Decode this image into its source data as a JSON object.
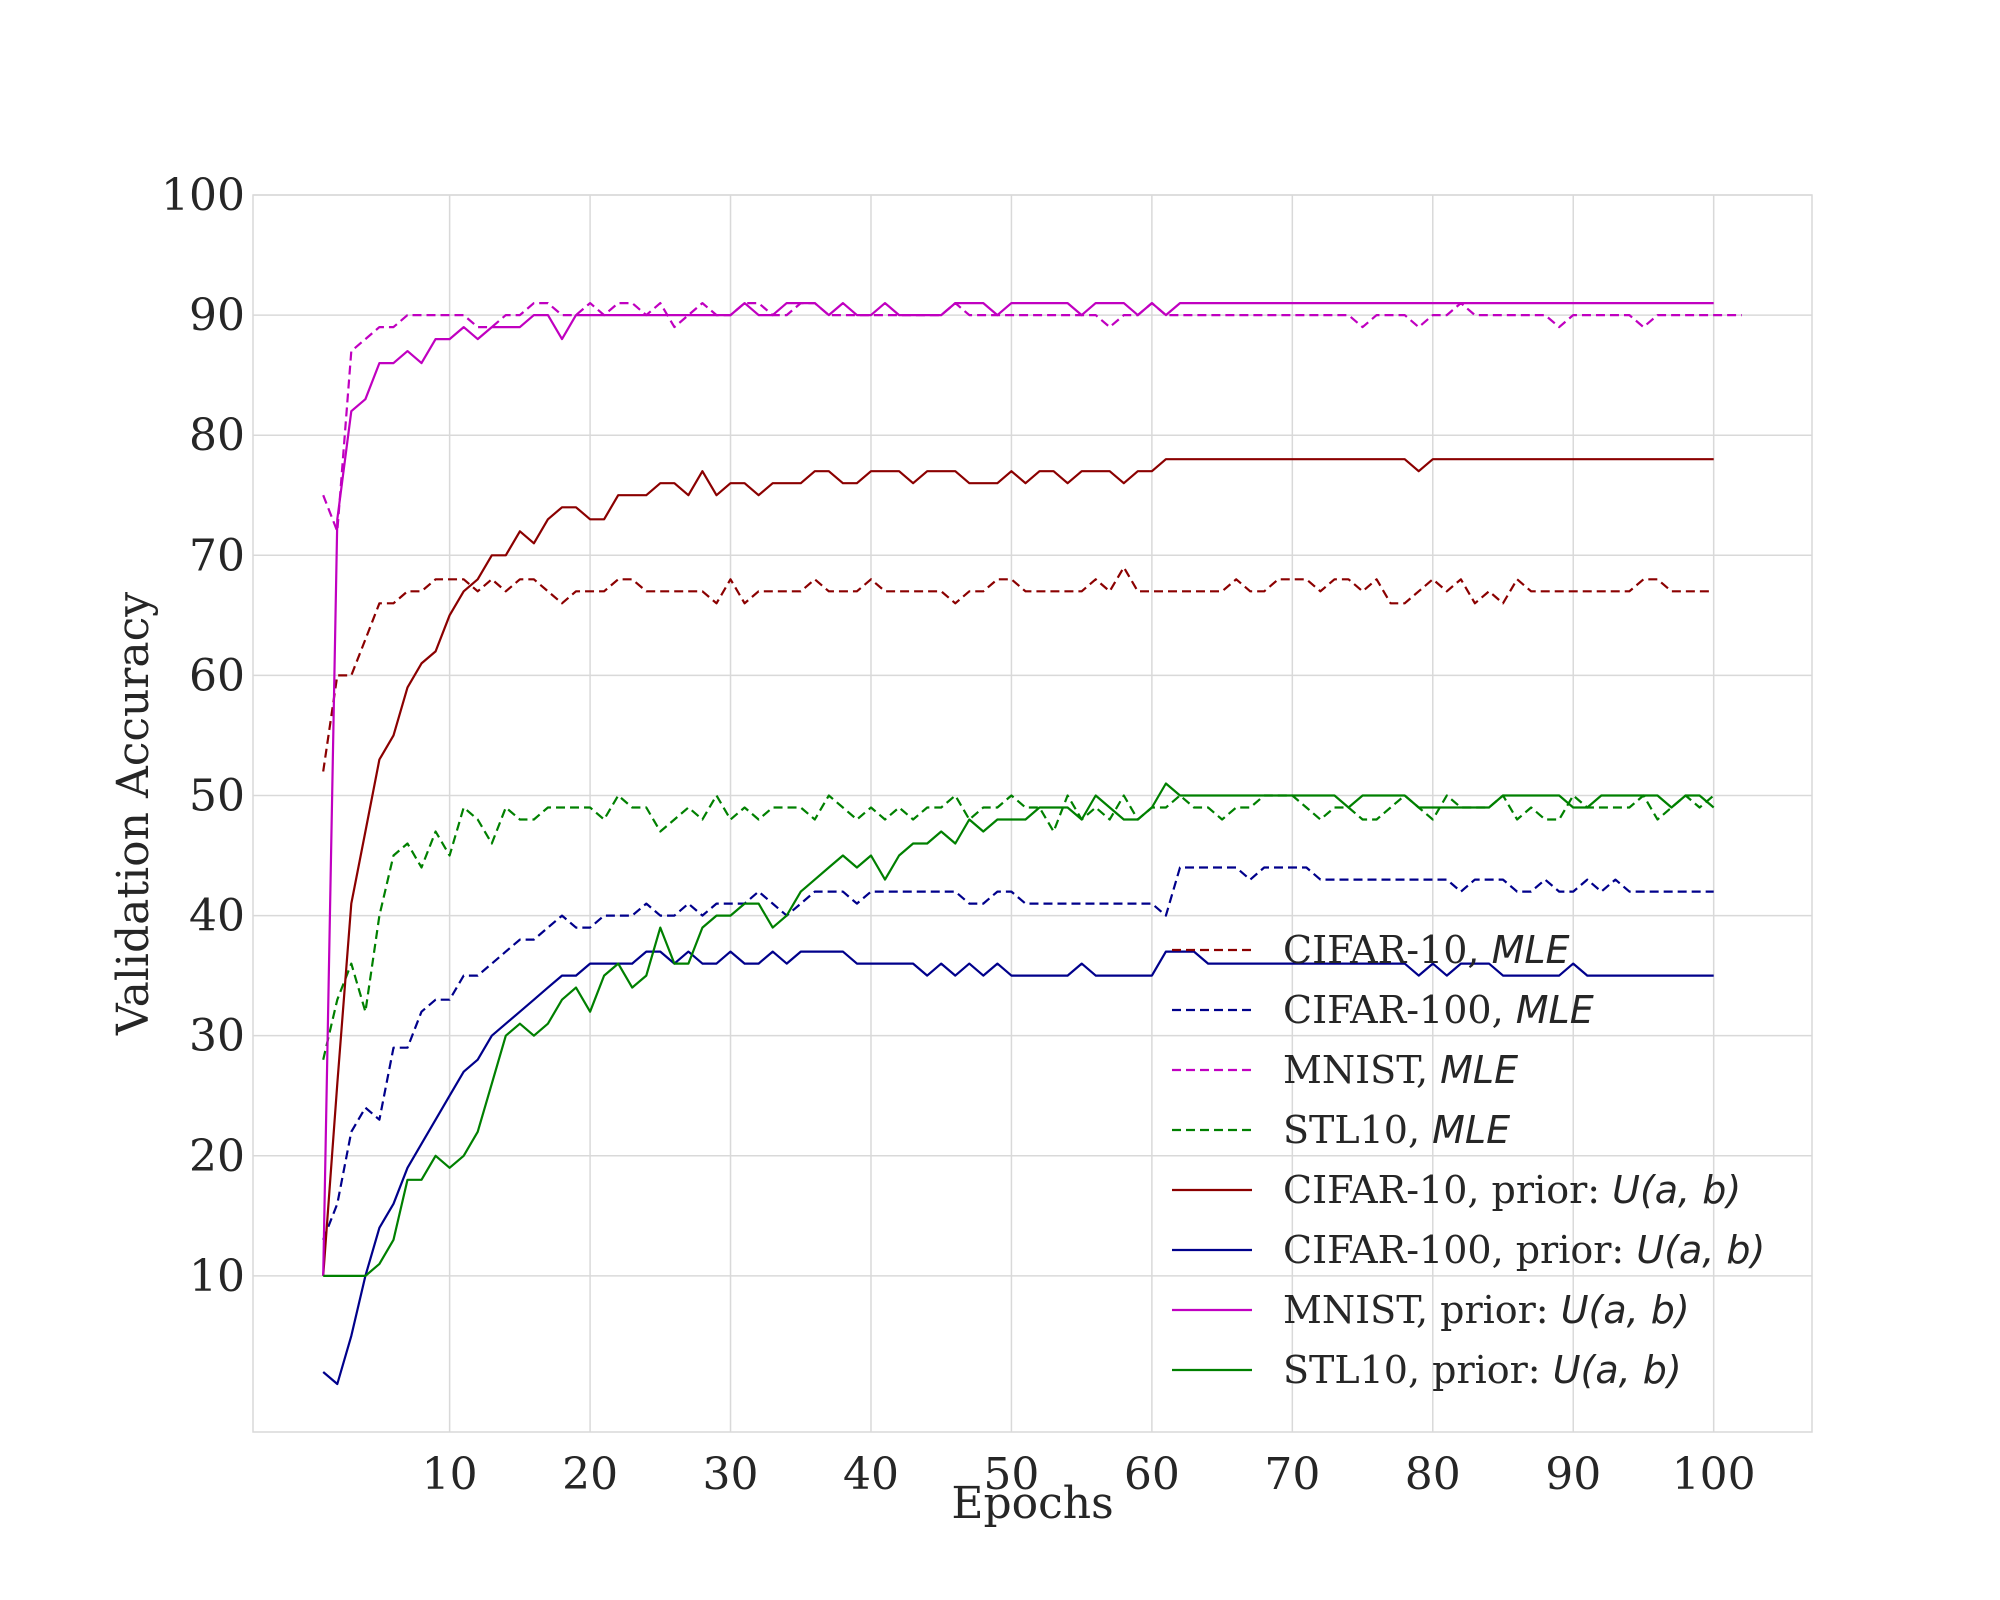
{
  "chart_data": {
    "type": "line",
    "xlabel": "Epochs",
    "ylabel": "Validation Accuracy",
    "xlim": [
      -4,
      107
    ],
    "ylim": [
      -3,
      100
    ],
    "xticks": [
      10,
      20,
      30,
      40,
      50,
      60,
      70,
      80,
      90,
      100
    ],
    "yticks": [
      10,
      20,
      30,
      40,
      50,
      60,
      70,
      80,
      90,
      100
    ],
    "grid": true,
    "legend_position": "lower-right",
    "series": [
      {
        "name": "CIFAR-10, MLE",
        "label_parts": [
          "CIFAR-10, ",
          "MLE"
        ],
        "style": "dashed",
        "color": "#8b0000",
        "x_start": 1,
        "values": [
          52,
          60,
          60,
          63,
          66,
          66,
          67,
          67,
          68,
          68,
          68,
          67,
          68,
          67,
          68,
          68,
          67,
          66,
          67,
          67,
          67,
          68,
          68,
          67,
          67,
          67,
          67,
          67,
          66,
          68,
          66,
          67,
          67,
          67,
          67,
          68,
          67,
          67,
          67,
          68,
          67,
          67,
          67,
          67,
          67,
          66,
          67,
          67,
          68,
          68,
          67,
          67,
          67,
          67,
          67,
          68,
          67,
          69,
          67,
          67,
          67,
          67,
          67,
          67,
          67,
          68,
          67,
          67,
          68,
          68,
          68,
          67,
          68,
          68,
          67,
          68,
          66,
          66,
          67,
          68,
          67,
          68,
          66,
          67,
          66,
          68,
          67,
          67,
          67,
          67,
          67,
          67,
          67,
          67,
          68,
          68,
          67,
          67,
          67,
          67
        ]
      },
      {
        "name": "CIFAR-100, MLE",
        "label_parts": [
          "CIFAR-100, ",
          "MLE"
        ],
        "style": "dashed",
        "color": "#00008b",
        "x_start": 1,
        "values": [
          13,
          16,
          22,
          24,
          23,
          29,
          29,
          32,
          33,
          33,
          35,
          35,
          36,
          37,
          38,
          38,
          39,
          40,
          39,
          39,
          40,
          40,
          40,
          41,
          40,
          40,
          41,
          40,
          41,
          41,
          41,
          42,
          41,
          40,
          41,
          42,
          42,
          42,
          41,
          42,
          42,
          42,
          42,
          42,
          42,
          42,
          41,
          41,
          42,
          42,
          41,
          41,
          41,
          41,
          41,
          41,
          41,
          41,
          41,
          41,
          40,
          44,
          44,
          44,
          44,
          44,
          43,
          44,
          44,
          44,
          44,
          43,
          43,
          43,
          43,
          43,
          43,
          43,
          43,
          43,
          43,
          42,
          43,
          43,
          43,
          42,
          42,
          43,
          42,
          42,
          43,
          42,
          43,
          42,
          42,
          42,
          42,
          42,
          42,
          42
        ]
      },
      {
        "name": "MNIST, MLE",
        "label_parts": [
          "MNIST, ",
          "MLE"
        ],
        "style": "dashed",
        "color": "#c000c0",
        "x_start": 1,
        "values": [
          75,
          72,
          87,
          88,
          89,
          89,
          90,
          90,
          90,
          90,
          90,
          89,
          89,
          90,
          90,
          91,
          91,
          90,
          90,
          91,
          90,
          91,
          91,
          90,
          91,
          89,
          90,
          91,
          90,
          90,
          91,
          91,
          90,
          90,
          91,
          91,
          90,
          90,
          90,
          90,
          90,
          90,
          90,
          90,
          90,
          91,
          90,
          90,
          90,
          90,
          90,
          90,
          90,
          90,
          90,
          90,
          89,
          90,
          90,
          91,
          90,
          90,
          90,
          90,
          90,
          90,
          90,
          90,
          90,
          90,
          90,
          90,
          90,
          90,
          89,
          90,
          90,
          90,
          89,
          90,
          90,
          91,
          90,
          90,
          90,
          90,
          90,
          90,
          89,
          90,
          90,
          90,
          90,
          90,
          89,
          90,
          90,
          90,
          90,
          90,
          90,
          90
        ]
      },
      {
        "name": "STL10, MLE",
        "label_parts": [
          "STL10, ",
          "MLE"
        ],
        "style": "dashed",
        "color": "#008000",
        "x_start": 1,
        "values": [
          28,
          33,
          36,
          32,
          40,
          45,
          46,
          44,
          47,
          45,
          49,
          48,
          46,
          49,
          48,
          48,
          49,
          49,
          49,
          49,
          48,
          50,
          49,
          49,
          47,
          48,
          49,
          48,
          50,
          48,
          49,
          48,
          49,
          49,
          49,
          48,
          50,
          49,
          48,
          49,
          48,
          49,
          48,
          49,
          49,
          50,
          48,
          49,
          49,
          50,
          49,
          49,
          47,
          50,
          48,
          49,
          48,
          50,
          48,
          49,
          49,
          50,
          49,
          49,
          48,
          49,
          49,
          50,
          50,
          50,
          49,
          48,
          49,
          49,
          48,
          48,
          49,
          50,
          49,
          48,
          50,
          49,
          49,
          49,
          50,
          48,
          49,
          48,
          48,
          50,
          49,
          49,
          49,
          49,
          50,
          48,
          49,
          50,
          49,
          50
        ]
      },
      {
        "name": "CIFAR-10, prior: U(a, b)",
        "label_parts": [
          "CIFAR-10, prior: ",
          "U(a, b)"
        ],
        "style": "solid",
        "color": "#8b0000",
        "x_start": 1,
        "values": [
          10,
          26,
          41,
          47,
          53,
          55,
          59,
          61,
          62,
          65,
          67,
          68,
          70,
          70,
          72,
          71,
          73,
          74,
          74,
          73,
          73,
          75,
          75,
          75,
          76,
          76,
          75,
          77,
          75,
          76,
          76,
          75,
          76,
          76,
          76,
          77,
          77,
          76,
          76,
          77,
          77,
          77,
          76,
          77,
          77,
          77,
          76,
          76,
          76,
          77,
          76,
          77,
          77,
          76,
          77,
          77,
          77,
          76,
          77,
          77,
          78,
          78,
          78,
          78,
          78,
          78,
          78,
          78,
          78,
          78,
          78,
          78,
          78,
          78,
          78,
          78,
          78,
          78,
          77,
          78,
          78,
          78,
          78,
          78,
          78,
          78,
          78,
          78,
          78,
          78,
          78,
          78,
          78,
          78,
          78,
          78,
          78,
          78,
          78,
          78
        ]
      },
      {
        "name": "CIFAR-100, prior: U(a, b)",
        "label_parts": [
          "CIFAR-100, prior: ",
          "U(a, b)"
        ],
        "style": "solid",
        "color": "#00008b",
        "x_start": 1,
        "values": [
          2,
          1,
          5,
          10,
          14,
          16,
          19,
          21,
          23,
          25,
          27,
          28,
          30,
          31,
          32,
          33,
          34,
          35,
          35,
          36,
          36,
          36,
          36,
          37,
          37,
          36,
          37,
          36,
          36,
          37,
          36,
          36,
          37,
          36,
          37,
          37,
          37,
          37,
          36,
          36,
          36,
          36,
          36,
          35,
          36,
          35,
          36,
          35,
          36,
          35,
          35,
          35,
          35,
          35,
          36,
          35,
          35,
          35,
          35,
          35,
          37,
          37,
          37,
          36,
          36,
          36,
          36,
          36,
          36,
          36,
          36,
          36,
          36,
          36,
          36,
          36,
          36,
          36,
          35,
          36,
          35,
          36,
          36,
          36,
          35,
          35,
          35,
          35,
          35,
          36,
          35,
          35,
          35,
          35,
          35,
          35,
          35,
          35,
          35,
          35
        ]
      },
      {
        "name": "MNIST, prior: U(a, b)",
        "label_parts": [
          "MNIST, prior: ",
          "U(a, b)"
        ],
        "style": "solid",
        "color": "#c000c0",
        "x_start": 1,
        "values": [
          10,
          73,
          82,
          83,
          86,
          86,
          87,
          86,
          88,
          88,
          89,
          88,
          89,
          89,
          89,
          90,
          90,
          88,
          90,
          90,
          90,
          90,
          90,
          90,
          90,
          90,
          90,
          90,
          90,
          90,
          91,
          90,
          90,
          91,
          91,
          91,
          90,
          91,
          90,
          90,
          91,
          90,
          90,
          90,
          90,
          91,
          91,
          91,
          90,
          91,
          91,
          91,
          91,
          91,
          90,
          91,
          91,
          91,
          90,
          91,
          90,
          91,
          91,
          91,
          91,
          91,
          91,
          91,
          91,
          91,
          91,
          91,
          91,
          91,
          91,
          91,
          91,
          91,
          91,
          91,
          91,
          91,
          91,
          91,
          91,
          91,
          91,
          91,
          91,
          91,
          91,
          91,
          91,
          91,
          91,
          91,
          91,
          91,
          91,
          91
        ]
      },
      {
        "name": "STL10, prior: U(a, b)",
        "label_parts": [
          "STL10, prior: ",
          "U(a, b)"
        ],
        "style": "solid",
        "color": "#008000",
        "x_start": 1,
        "values": [
          10,
          10,
          10,
          10,
          11,
          13,
          18,
          18,
          20,
          19,
          20,
          22,
          26,
          30,
          31,
          30,
          31,
          33,
          34,
          32,
          35,
          36,
          34,
          35,
          39,
          36,
          36,
          39,
          40,
          40,
          41,
          41,
          39,
          40,
          42,
          43,
          44,
          45,
          44,
          45,
          43,
          45,
          46,
          46,
          47,
          46,
          48,
          47,
          48,
          48,
          48,
          49,
          49,
          49,
          48,
          50,
          49,
          48,
          48,
          49,
          51,
          50,
          50,
          50,
          50,
          50,
          50,
          50,
          50,
          50,
          50,
          50,
          50,
          49,
          50,
          50,
          50,
          50,
          49,
          49,
          49,
          49,
          49,
          49,
          50,
          50,
          50,
          50,
          50,
          49,
          49,
          50,
          50,
          50,
          50,
          50,
          49,
          50,
          50,
          49
        ]
      }
    ]
  }
}
